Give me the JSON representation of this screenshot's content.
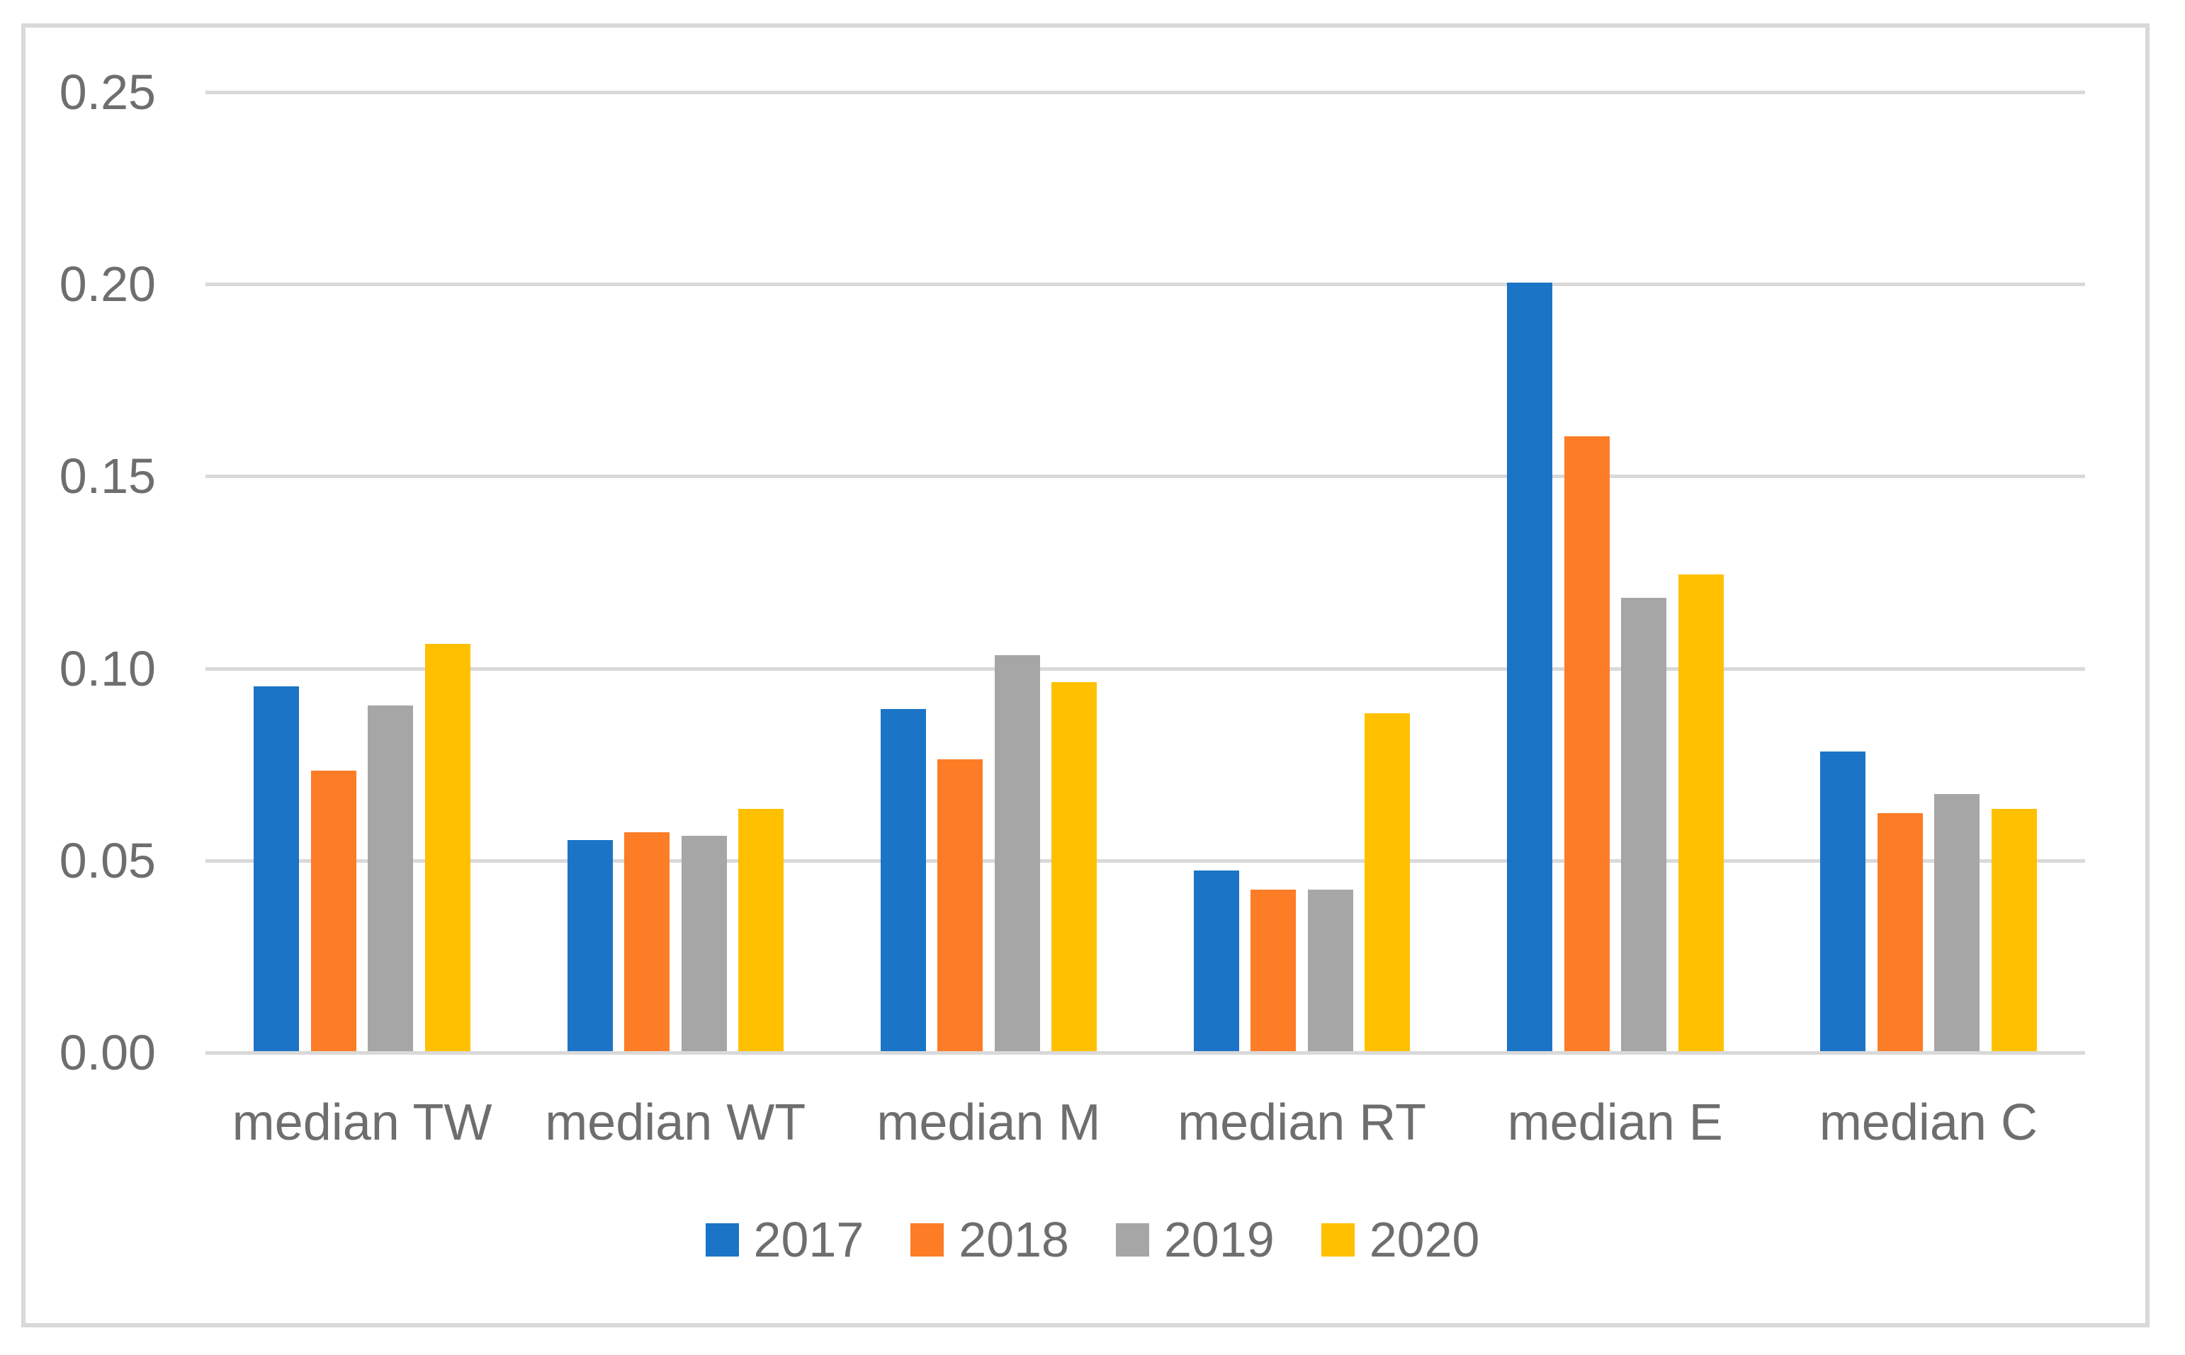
{
  "chart_data": {
    "type": "bar",
    "title": "",
    "xlabel": "",
    "ylabel": "",
    "categories": [
      "median TW",
      "median WT",
      "median M",
      "median RT",
      "median E",
      "median C"
    ],
    "series": [
      {
        "name": "2017",
        "color": "#1B74C6",
        "values": [
          0.095,
          0.055,
          0.089,
          0.047,
          0.2,
          0.078
        ]
      },
      {
        "name": "2018",
        "color": "#FD7C26",
        "values": [
          0.073,
          0.057,
          0.076,
          0.042,
          0.16,
          0.062
        ]
      },
      {
        "name": "2019",
        "color": "#A6A6A6",
        "values": [
          0.09,
          0.056,
          0.103,
          0.042,
          0.118,
          0.067
        ]
      },
      {
        "name": "2020",
        "color": "#FFC000",
        "values": [
          0.106,
          0.063,
          0.096,
          0.088,
          0.124,
          0.063
        ]
      }
    ],
    "ylim": [
      0,
      0.25
    ],
    "yticks": [
      0,
      0.05,
      0.1,
      0.15,
      0.2,
      0.25
    ],
    "ytick_labels": [
      "0.00",
      "0.05",
      "0.10",
      "0.15",
      "0.20",
      "0.25"
    ],
    "grid": true,
    "gridline_color": "#D9D9D9",
    "frame_color": "#D9D9D9",
    "text_color": "#6E6E6E",
    "legend_position": "bottom",
    "legend_labels": [
      "2017",
      "2018",
      "2019",
      "2020"
    ]
  }
}
